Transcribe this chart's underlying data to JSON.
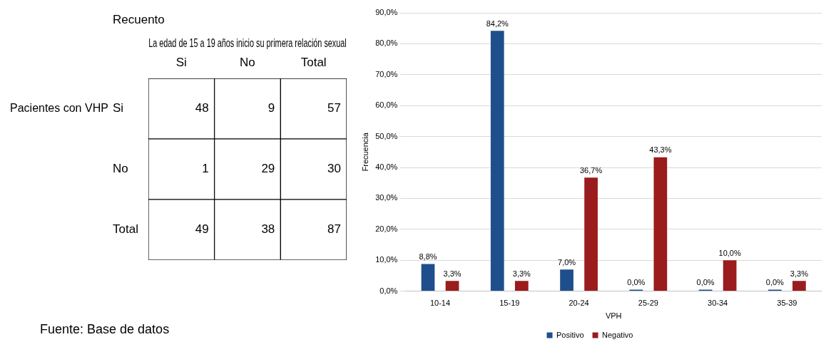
{
  "chart_data": [
    {
      "type": "heatmap",
      "title": "Recuento",
      "xlabel": "La edad de 15 a 19 años inicio su primera relación sexual",
      "ylabel": "Pacientes con VHP",
      "categories": [
        "Si",
        "No",
        "Total"
      ],
      "y_categories": [
        "Si",
        "No",
        "Total"
      ],
      "cells": [
        [
          48,
          9,
          57
        ],
        [
          1,
          29,
          30
        ],
        [
          49,
          38,
          87
        ]
      ],
      "data_labels": true,
      "annotations": [
        "Fuente: Base de datos"
      ]
    },
    {
      "type": "bar",
      "ylabel": "Frecuencia",
      "xlabel": "VPH",
      "categories": [
        "10-14",
        "15-19",
        "20-24",
        "25-29",
        "30-34",
        "35-39"
      ],
      "series": [
        {
          "name": "Positivo",
          "color": "#1f4e8c",
          "values": [
            8.8,
            84.2,
            7.0,
            0,
            0,
            0
          ],
          "value_labels": [
            "8,8%",
            "84,2%",
            "7,0%",
            "0,0%",
            "0,0%",
            "0,0%"
          ]
        },
        {
          "name": "Negativo",
          "color": "#9b1c1c",
          "values": [
            3.3,
            3.3,
            36.7,
            43.3,
            10.0,
            3.3
          ],
          "value_labels": [
            "3,3%",
            "3,3%",
            "36,7%",
            "43,3%",
            "10,0%",
            "3,3%"
          ]
        }
      ],
      "ylim": [
        0,
        90
      ],
      "yticks": [
        {
          "value": 0,
          "label": "0,0%"
        },
        {
          "value": 10,
          "label": "10,0%"
        },
        {
          "value": 20,
          "label": "20,0%"
        },
        {
          "value": 30,
          "label": "30,0%"
        },
        {
          "value": 40,
          "label": "40,0%"
        },
        {
          "value": 50,
          "label": "50,0%"
        },
        {
          "value": 60,
          "label": "60,0%"
        },
        {
          "value": 70,
          "label": "70,0%"
        },
        {
          "value": 80,
          "label": "80,0%"
        },
        {
          "value": 90,
          "label": "90,0%"
        }
      ],
      "grid": "y",
      "legend": "bottom"
    }
  ]
}
